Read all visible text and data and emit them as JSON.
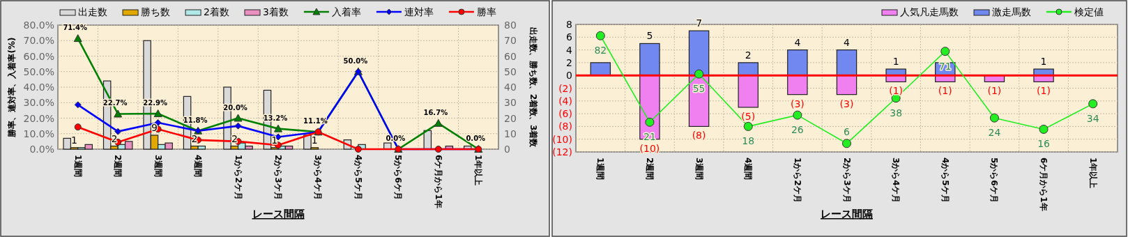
{
  "chart_data": [
    {
      "type": "bar",
      "xlabel": "レース間隔",
      "ylabel": "勝率、連対率、入着率(%)",
      "y2label": "出走数、勝ち数、2着数、3着数",
      "categories": [
        "1週間",
        "2週間",
        "3週間",
        "4週間",
        "1から2ケ月",
        "2から3ケ月",
        "3から4ケ月",
        "4から5ケ月",
        "5から6ケ月",
        "6ケ月から1年",
        "1年以上"
      ],
      "ylim": [
        0,
        80
      ],
      "yticks": [
        {
          "value": 0,
          "label": "0.0%"
        },
        {
          "value": 10,
          "label": "10.0%"
        },
        {
          "value": 20,
          "label": "20.0%"
        },
        {
          "value": 30,
          "label": "30.0%"
        },
        {
          "value": 40,
          "label": "40.0%"
        },
        {
          "value": 50,
          "label": "50.0%"
        },
        {
          "value": 60,
          "label": "60.0%"
        },
        {
          "value": 70,
          "label": "70.0%"
        },
        {
          "value": 80,
          "label": "80.0%"
        }
      ],
      "y2lim": [
        0,
        80
      ],
      "y2ticks": [
        0,
        10,
        20,
        30,
        40,
        50,
        60,
        70,
        80
      ],
      "grid": true,
      "legend": "top",
      "series": [
        {
          "name": "出走数",
          "axis": "y2",
          "color": "#d9d9d9",
          "values": [
            7,
            44,
            70,
            34,
            40,
            38,
            9,
            6,
            4,
            12,
            2
          ]
        },
        {
          "name": "勝ち数",
          "axis": "y2",
          "color": "#e0a800",
          "values": [
            1,
            2,
            9,
            2,
            2,
            1,
            1,
            0,
            0,
            0,
            0
          ],
          "value_labels": [
            "1",
            "2",
            "9",
            "2",
            "2",
            "1",
            "1",
            null,
            null,
            null,
            null
          ]
        },
        {
          "name": "2着数",
          "axis": "y2",
          "color": "#b0e8e8",
          "values": [
            1,
            3,
            3,
            2,
            4,
            2,
            0,
            3,
            0,
            0,
            0
          ]
        },
        {
          "name": "3着数",
          "axis": "y2",
          "color": "#e890c0",
          "values": [
            3,
            5,
            4,
            0,
            2,
            2,
            0,
            0,
            0,
            2,
            0
          ]
        },
        {
          "name": "入着率",
          "type": "line",
          "marker": "triangle",
          "color": "#008000",
          "values": [
            71.4,
            22.7,
            22.9,
            11.8,
            20.0,
            13.2,
            11.1,
            50.0,
            0.0,
            16.7,
            0.0
          ],
          "value_labels": [
            "71.4%",
            "22.7%",
            "22.9%",
            "11.8%",
            "20.0%",
            "13.2%",
            "11.1%",
            "50.0%",
            "0.0%",
            "16.7%",
            "0.0%"
          ]
        },
        {
          "name": "連対率",
          "type": "line",
          "marker": "diamond",
          "color": "#0000ff",
          "values": [
            28.6,
            11.4,
            17.1,
            11.8,
            15.0,
            7.9,
            11.1,
            50.0,
            0.0,
            0.0,
            0.0
          ]
        },
        {
          "name": "勝率",
          "type": "line",
          "marker": "circle",
          "color": "#ff0000",
          "values": [
            14.3,
            4.5,
            12.9,
            5.9,
            5.0,
            2.6,
            11.1,
            0.0,
            0.0,
            0.0,
            0.0
          ]
        }
      ]
    },
    {
      "type": "bar",
      "xlabel": "レース間隔",
      "categories": [
        "1週間",
        "2週間",
        "3週間",
        "4週間",
        "1から2ケ月",
        "2から3ケ月",
        "3から4ケ月",
        "4から5ケ月",
        "5から6ケ月",
        "6ケ月から1年",
        "1年以上"
      ],
      "stacked": true,
      "ylim": [
        -12,
        8
      ],
      "yticks": [
        8,
        6,
        4,
        2,
        0,
        {
          "value": -2,
          "label": "(2)"
        },
        {
          "value": -4,
          "label": "(4)"
        },
        {
          "value": -6,
          "label": "(6)"
        },
        {
          "value": -8,
          "label": "(8)"
        },
        {
          "value": -10,
          "label": "(10)"
        },
        {
          "value": -12,
          "label": "(12)"
        }
      ],
      "y2lim": [
        0,
        90
      ],
      "grid": true,
      "legend": "top right",
      "ref_lines": [
        {
          "axis": "y",
          "value": 0,
          "color": "#ff0000"
        }
      ],
      "series": [
        {
          "name": "人気凡走馬数",
          "color": "#f080f0",
          "values": [
            0,
            -10,
            -8,
            -5,
            -3,
            -3,
            -1,
            -1,
            -1,
            -1,
            0
          ],
          "value_labels": [
            null,
            "(10)",
            "(8)",
            "(5)",
            "(3)",
            "(3)",
            "(1)",
            "(1)",
            "(1)",
            "(1)",
            null
          ]
        },
        {
          "name": "激走馬数",
          "color": "#7088f0",
          "values": [
            2,
            5,
            7,
            2,
            4,
            4,
            1,
            2,
            0,
            1,
            0
          ],
          "value_labels": [
            null,
            "5",
            "7",
            "2",
            "4",
            "4",
            "1",
            null,
            null,
            "1",
            null
          ]
        },
        {
          "name": "検定値",
          "type": "line",
          "axis": "y2",
          "marker": "circle",
          "color": "#22ee22",
          "values": [
            82,
            21,
            55,
            18,
            26,
            6,
            38,
            71,
            24,
            16,
            34
          ],
          "value_labels": [
            "82",
            "21",
            "55",
            "18",
            "26",
            "6",
            "38",
            "71",
            "24",
            "16",
            "34"
          ]
        }
      ]
    }
  ]
}
